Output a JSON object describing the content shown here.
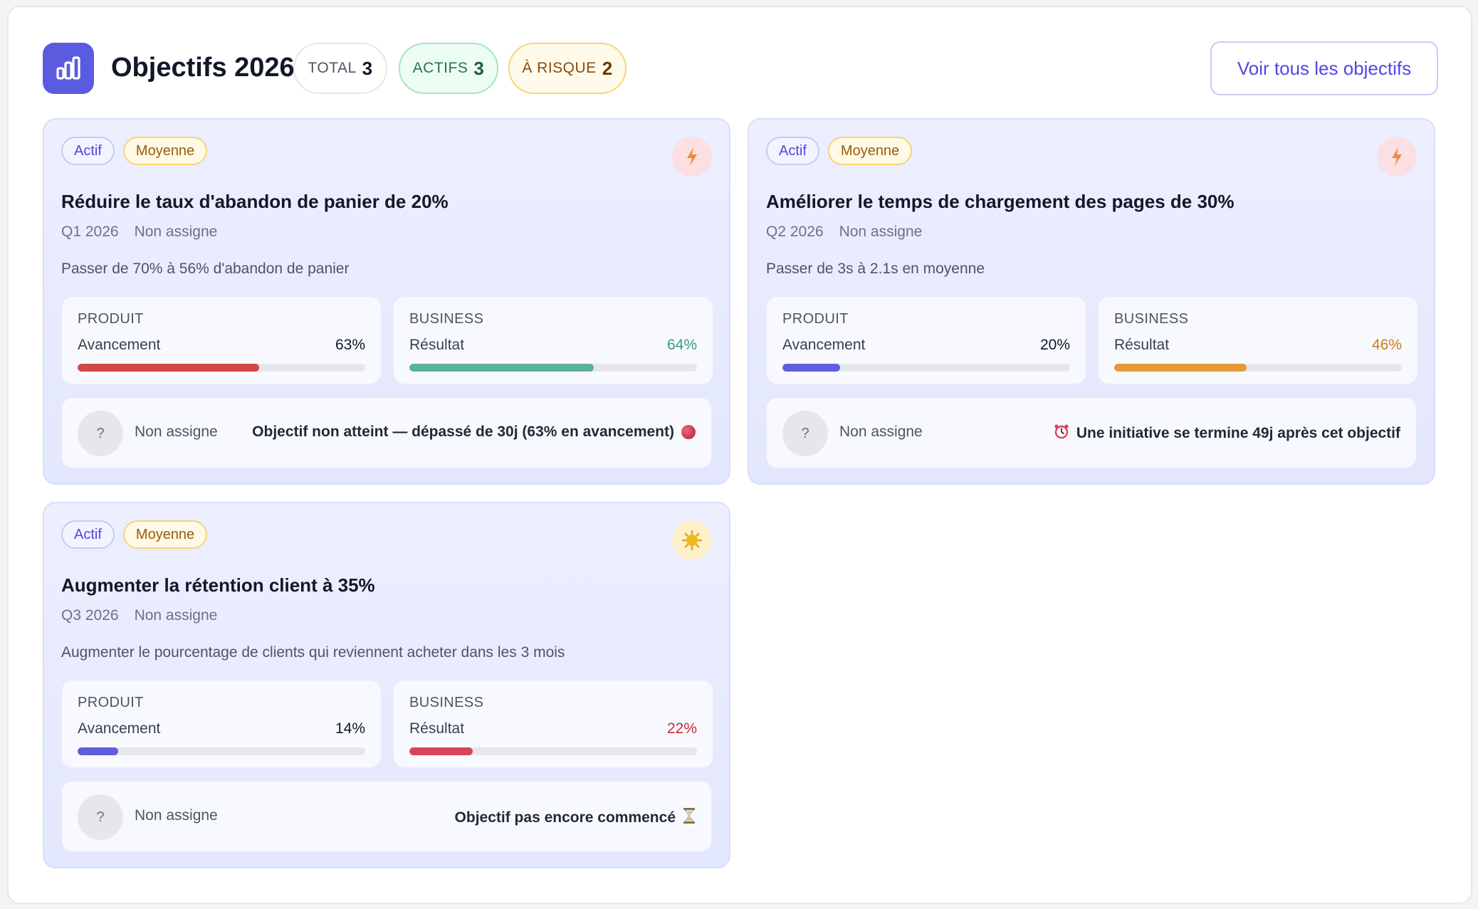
{
  "header": {
    "title": "Objectifs 2026",
    "pills": {
      "total": {
        "label": "TOTAL",
        "value": "3"
      },
      "actifs": {
        "label": "ACTIFS",
        "value": "3"
      },
      "risque": {
        "label": "À RISQUE",
        "value": "2"
      }
    },
    "view_all_label": "Voir tous les objectifs"
  },
  "colors": {
    "brand": "#5b5be0",
    "bar_red": "#d04848",
    "bar_teal": "#5bb29b",
    "bar_indigo": "#5d5fdf",
    "bar_orange": "#e59a36",
    "bar_crimson": "#d64558",
    "value_teal": "#3a9a7c",
    "value_orange": "#d07a16",
    "value_red": "#c8283c"
  },
  "objectives": [
    {
      "status": "Actif",
      "priority": "Moyenne",
      "mood_icon": "bolt-icon",
      "title": "Réduire le taux d'abandon de panier de 20%",
      "quarter": "Q1 2026",
      "owner": "Non assigne",
      "description": "Passer de 70% à 56% d'abandon de panier",
      "product": {
        "category": "PRODUIT",
        "label": "Avancement",
        "value_text": "63%",
        "value": 63
      },
      "business": {
        "category": "BUSINESS",
        "label": "Résultat",
        "value_text": "64%",
        "value": 64
      },
      "footer": {
        "avatar": "?",
        "owner": "Non assigne",
        "message": "Objectif non atteint — dépassé de 30j (63% en avancement)",
        "icon": "red-circle-icon"
      }
    },
    {
      "status": "Actif",
      "priority": "Moyenne",
      "mood_icon": "bolt-icon",
      "title": "Améliorer le temps de chargement des pages de 30%",
      "quarter": "Q2 2026",
      "owner": "Non assigne",
      "description": "Passer de 3s à 2.1s en moyenne",
      "product": {
        "category": "PRODUIT",
        "label": "Avancement",
        "value_text": "20%",
        "value": 20
      },
      "business": {
        "category": "BUSINESS",
        "label": "Résultat",
        "value_text": "46%",
        "value": 46
      },
      "footer": {
        "avatar": "?",
        "owner": "Non assigne",
        "message": "Une initiative se termine 49j après cet objectif",
        "icon": "alarm-clock-icon"
      }
    },
    {
      "status": "Actif",
      "priority": "Moyenne",
      "mood_icon": "sun-icon",
      "title": "Augmenter la rétention client à 35%",
      "quarter": "Q3 2026",
      "owner": "Non assigne",
      "description": "Augmenter le pourcentage de clients qui reviennent acheter dans les 3 mois",
      "product": {
        "category": "PRODUIT",
        "label": "Avancement",
        "value_text": "14%",
        "value": 14
      },
      "business": {
        "category": "BUSINESS",
        "label": "Résultat",
        "value_text": "22%",
        "value": 22
      },
      "footer": {
        "avatar": "?",
        "owner": "Non assigne",
        "message": "Objectif pas encore commencé",
        "icon": "hourglass-icon"
      }
    }
  ]
}
